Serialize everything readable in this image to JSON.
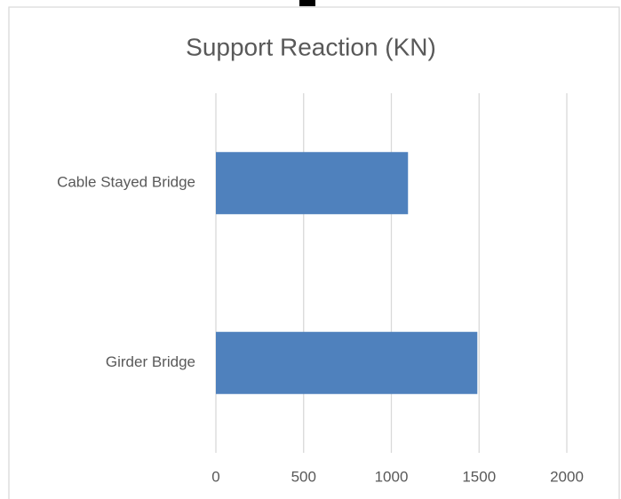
{
  "chart_data": {
    "type": "bar",
    "orientation": "horizontal",
    "title": "Support Reaction (KN)",
    "categories": [
      "Cable Stayed Bridge",
      "Girder Bridge"
    ],
    "values": [
      1095,
      1490
    ],
    "color": "#4f81bd",
    "xlim": [
      0,
      2000
    ],
    "xticks": [
      0,
      500,
      1000,
      1500,
      2000
    ],
    "grid": true
  }
}
